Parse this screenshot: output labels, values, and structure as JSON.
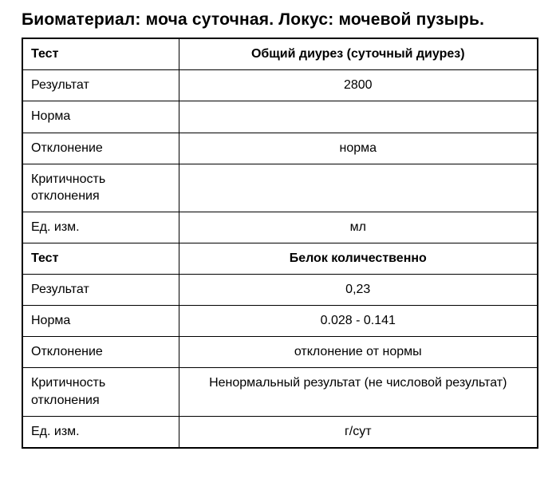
{
  "page_title": "Биоматериал: моча суточная. Локус: мочевой пузырь.",
  "table": {
    "rows": [
      {
        "label": "Тест",
        "value": "Общий диурез (суточный диурез)",
        "bold": true
      },
      {
        "label": "Результат",
        "value": "2800"
      },
      {
        "label": "Норма",
        "value": ""
      },
      {
        "label": "Отклонение",
        "value": "норма"
      },
      {
        "label": "Критичность отклонения",
        "value": ""
      },
      {
        "label": "Ед. изм.",
        "value": "мл"
      },
      {
        "label": "Тест",
        "value": "Белок количественно",
        "bold": true
      },
      {
        "label": "Результат",
        "value": "0,23"
      },
      {
        "label": "Норма",
        "value": "0.028 - 0.141"
      },
      {
        "label": "Отклонение",
        "value": "отклонение от нормы"
      },
      {
        "label": "Критичность отклонения",
        "value": "Ненормальный результат (не числовой результат)"
      },
      {
        "label": "Ед. изм.",
        "value": "г/сут"
      }
    ]
  },
  "colors": {
    "border": "#000000",
    "text": "#000000",
    "background": "#ffffff"
  }
}
